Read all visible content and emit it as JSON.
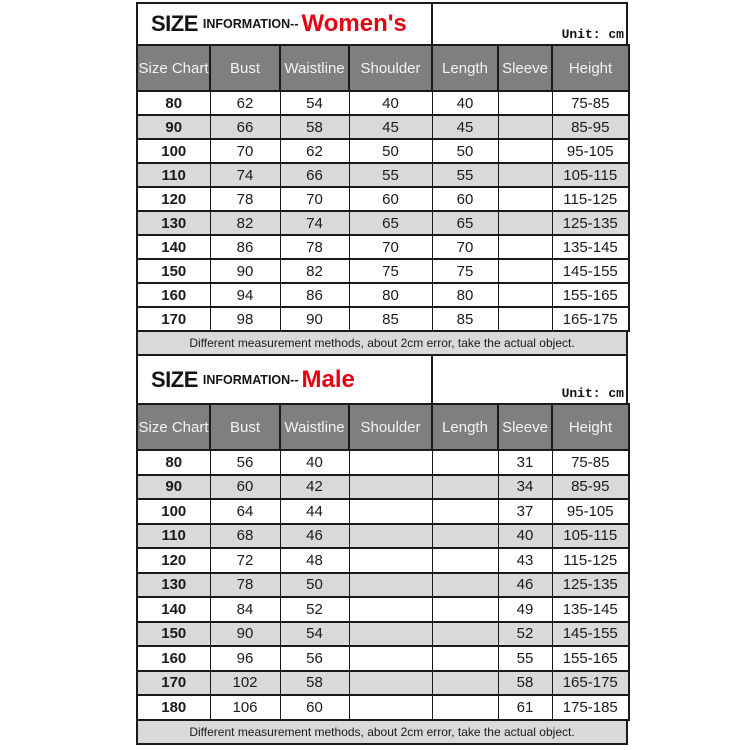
{
  "colors": {
    "accent_red": "#e60014",
    "header_bg": "#7f7f7f",
    "shaded_row_bg": "#d9d9d9",
    "border": "#1a1a1a",
    "header_text": "#f4f4f4"
  },
  "tables": [
    {
      "title_main": "SIZE",
      "title_sub": "INFORMATION--",
      "title_highlight": "Women's",
      "unit_label": "Unit: cm",
      "columns": [
        "Size Chart",
        "Bust",
        "Waistline",
        "Shoulder",
        "Length",
        "Sleeve",
        "Height"
      ],
      "rows": [
        [
          "80",
          "62",
          "54",
          "40",
          "40",
          "",
          "75-85"
        ],
        [
          "90",
          "66",
          "58",
          "45",
          "45",
          "",
          "85-95"
        ],
        [
          "100",
          "70",
          "62",
          "50",
          "50",
          "",
          "95-105"
        ],
        [
          "110",
          "74",
          "66",
          "55",
          "55",
          "",
          "105-115"
        ],
        [
          "120",
          "78",
          "70",
          "60",
          "60",
          "",
          "115-125"
        ],
        [
          "130",
          "82",
          "74",
          "65",
          "65",
          "",
          "125-135"
        ],
        [
          "140",
          "86",
          "78",
          "70",
          "70",
          "",
          "135-145"
        ],
        [
          "150",
          "90",
          "82",
          "75",
          "75",
          "",
          "145-155"
        ],
        [
          "160",
          "94",
          "86",
          "80",
          "80",
          "",
          "155-165"
        ],
        [
          "170",
          "98",
          "90",
          "85",
          "85",
          "",
          "165-175"
        ]
      ],
      "shaded_row_indexes": [
        1,
        3,
        5
      ],
      "note": "Different measurement methods, about 2cm error, take the actual object."
    },
    {
      "title_main": "SIZE",
      "title_sub": "INFORMATION--",
      "title_highlight": "Male",
      "unit_label": "Unit: cm",
      "columns": [
        "Size Chart",
        "Bust",
        "Waistline",
        "Shoulder",
        "Length",
        "Sleeve",
        "Height"
      ],
      "rows": [
        [
          "80",
          "56",
          "40",
          "",
          "",
          "31",
          "75-85"
        ],
        [
          "90",
          "60",
          "42",
          "",
          "",
          "34",
          "85-95"
        ],
        [
          "100",
          "64",
          "44",
          "",
          "",
          "37",
          "95-105"
        ],
        [
          "110",
          "68",
          "46",
          "",
          "",
          "40",
          "105-115"
        ],
        [
          "120",
          "72",
          "48",
          "",
          "",
          "43",
          "115-125"
        ],
        [
          "130",
          "78",
          "50",
          "",
          "",
          "46",
          "125-135"
        ],
        [
          "140",
          "84",
          "52",
          "",
          "",
          "49",
          "135-145"
        ],
        [
          "150",
          "90",
          "54",
          "",
          "",
          "52",
          "145-155"
        ],
        [
          "160",
          "96",
          "56",
          "",
          "",
          "55",
          "155-165"
        ],
        [
          "170",
          "102",
          "58",
          "",
          "",
          "58",
          "165-175"
        ],
        [
          "180",
          "106",
          "60",
          "",
          "",
          "61",
          "175-185"
        ]
      ],
      "shaded_row_indexes": [
        1,
        3,
        5,
        7,
        9
      ],
      "note": "Different measurement methods, about 2cm error, take the actual object."
    }
  ]
}
